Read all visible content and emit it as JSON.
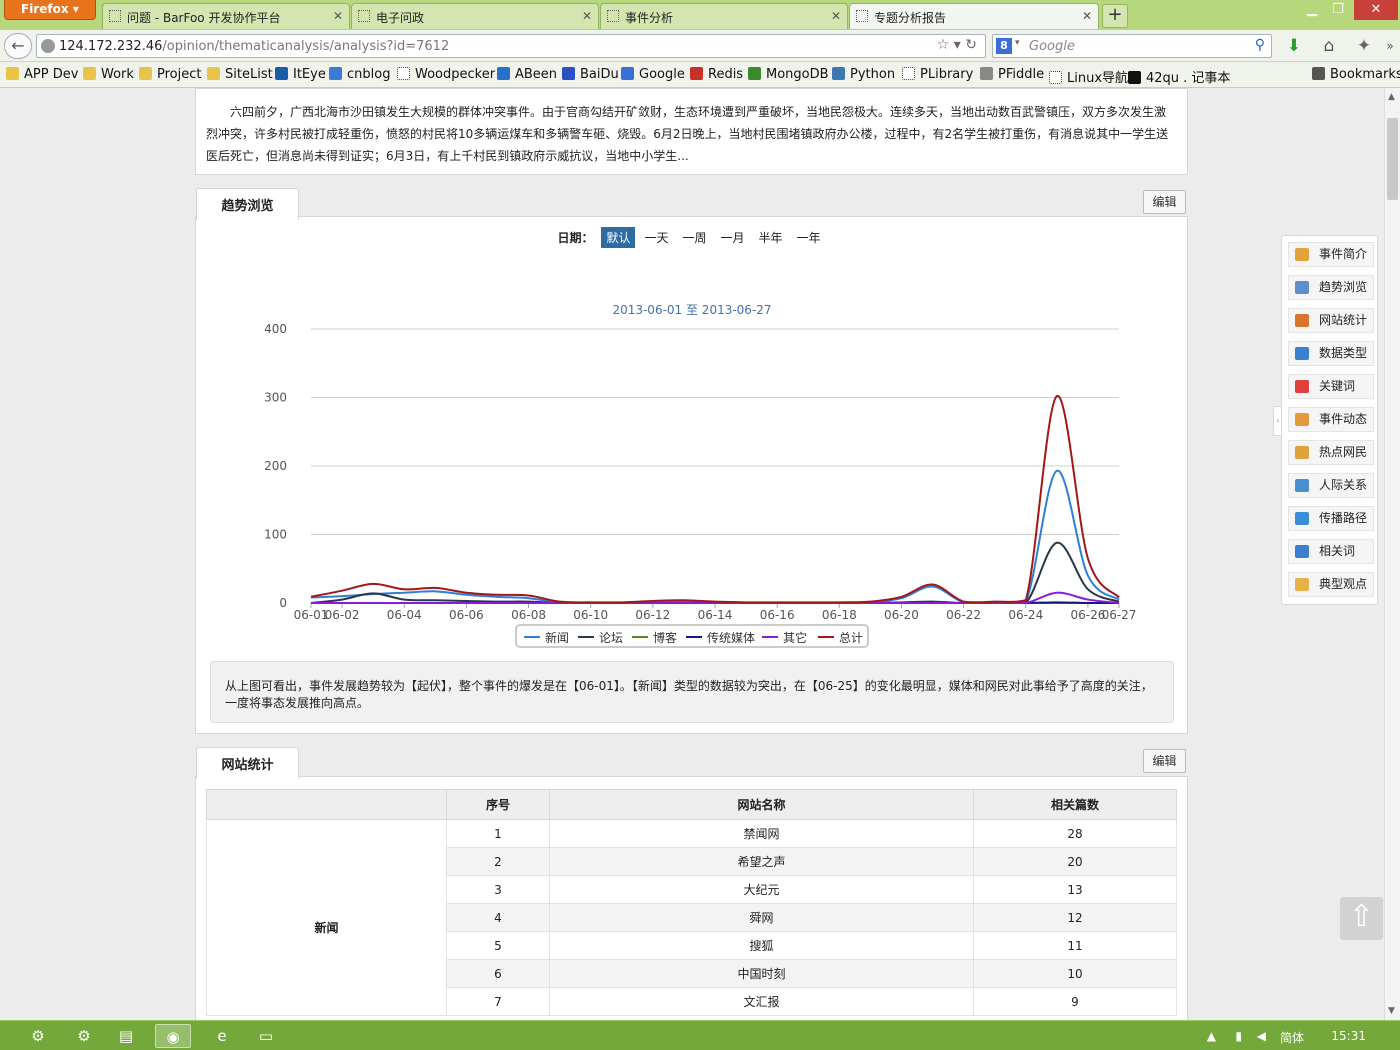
{
  "browser": {
    "menu_label": "Firefox",
    "tabs": [
      {
        "label": "问题 - BarFoo 开发协作平台"
      },
      {
        "label": "电子问政"
      },
      {
        "label": "事件分析"
      },
      {
        "label": "专题分析报告"
      }
    ],
    "new_tab": "+",
    "url_host": "124.172.232.46",
    "url_path": "/opinion/thematicanalysis/analysis?id=7612",
    "search_engine": "8",
    "search_placeholder": "Google",
    "bookmarks": [
      {
        "label": "APP Dev",
        "icon": "folder-icon",
        "color": "#e8c44a"
      },
      {
        "label": "Work",
        "icon": "folder-icon",
        "color": "#e8c44a"
      },
      {
        "label": "Project",
        "icon": "folder-icon",
        "color": "#e8c44a"
      },
      {
        "label": "SiteList",
        "icon": "folder-icon",
        "color": "#e8c44a"
      },
      {
        "label": "ItEye",
        "icon": "iteye-icon",
        "color": "#1a5ca6"
      },
      {
        "label": "cnblog",
        "icon": "cnblog-icon",
        "color": "#3a7bd5"
      },
      {
        "label": "Woodpecker",
        "icon": "page-icon",
        "color": "#ffffff"
      },
      {
        "label": "ABeen",
        "icon": "abeen-icon",
        "color": "#2b6fc8"
      },
      {
        "label": "BaiDu",
        "icon": "baidu-icon",
        "color": "#2a4fc7"
      },
      {
        "label": "Google",
        "icon": "google-icon",
        "color": "#3b6fd8"
      },
      {
        "label": "Redis",
        "icon": "redis-icon",
        "color": "#c8302a"
      },
      {
        "label": "MongoDB",
        "icon": "mongodb-icon",
        "color": "#3c8a2e"
      },
      {
        "label": "Python",
        "icon": "python-icon",
        "color": "#3f77b5"
      },
      {
        "label": "PLibrary",
        "icon": "page-icon",
        "color": "#ffffff"
      },
      {
        "label": "PFiddle",
        "icon": "pfiddle-icon",
        "color": "#888888"
      },
      {
        "label": "Linux导航",
        "icon": "page-icon",
        "color": "#ffffff"
      },
      {
        "label": "42qu . 记事本",
        "icon": "42qu-icon",
        "color": "#111111"
      }
    ],
    "bookmarks_menu": "Bookmarks"
  },
  "summary": {
    "text": "六四前夕，广西北海市沙田镇发生大规模的群体冲突事件。由于官商勾结开矿敛财，生态环境遭到严重破坏，当地民怨极大。连续多天，当地出动数百武警镇压，双方多次发生激烈冲突，许多村民被打成轻重伤，愤怒的村民将10多辆运煤车和多辆警车砸、烧毁。6月2日晚上，当地村民围堵镇政府办公楼，过程中，有2名学生被打重伤，有消息说其中一学生送医后死亡，但消息尚未得到证实；6月3日，有上千村民到镇政府示威抗议，当地中小学生..."
  },
  "trend": {
    "tab_label": "趋势浏览",
    "edit_label": "编辑",
    "date_label": "日期：",
    "date_options": [
      "默认",
      "一天",
      "一周",
      "一月",
      "半年",
      "一年"
    ],
    "selected_option": "默认",
    "conclusion": "从上图可看出，事件发展趋势较为【起伏】，整个事件的爆发是在【06-01】。【新闻】类型的数据较为突出，在【06-25】的变化最明显，媒体和网民对此事给予了高度的关注，一度将事态发展推向高点。"
  },
  "chart_data": {
    "type": "line",
    "title": "2013-06-01 至 2013-06-27",
    "x": [
      "06-01",
      "06-02",
      "06-03",
      "06-04",
      "06-05",
      "06-06",
      "06-07",
      "06-08",
      "06-09",
      "06-10",
      "06-11",
      "06-12",
      "06-13",
      "06-14",
      "06-15",
      "06-16",
      "06-17",
      "06-18",
      "06-19",
      "06-20",
      "06-21",
      "06-22",
      "06-23",
      "06-24",
      "06-25",
      "06-26",
      "06-27"
    ],
    "x_tick_labels": [
      "06-01",
      "06-02",
      "06-04",
      "06-06",
      "06-08",
      "06-10",
      "06-12",
      "06-14",
      "06-16",
      "06-18",
      "06-20",
      "06-22",
      "06-24",
      "06-26",
      "06-27"
    ],
    "ylim": [
      0,
      400
    ],
    "yticks": [
      0,
      100,
      200,
      300,
      400
    ],
    "grid": true,
    "legend_position": "bottom",
    "series": [
      {
        "name": "新闻",
        "color": "#2f7ed8",
        "values": [
          8,
          10,
          13,
          15,
          17,
          12,
          9,
          7,
          1,
          0,
          0,
          2,
          2,
          1,
          0,
          0,
          0,
          0,
          1,
          7,
          24,
          1,
          1,
          2,
          193,
          40,
          5
        ]
      },
      {
        "name": "论坛",
        "color": "#283848",
        "values": [
          0,
          5,
          14,
          5,
          4,
          3,
          2,
          2,
          0,
          0,
          0,
          0,
          0,
          0,
          0,
          0,
          0,
          0,
          0,
          1,
          2,
          0,
          0,
          0,
          88,
          20,
          2
        ]
      },
      {
        "name": "博客",
        "color": "#5a8a1f",
        "values": [
          0,
          0,
          0,
          0,
          0,
          0,
          0,
          0,
          0,
          0,
          0,
          0,
          0,
          0,
          0,
          0,
          0,
          0,
          0,
          0,
          0,
          0,
          0,
          0,
          0,
          0,
          0
        ]
      },
      {
        "name": "传统媒体",
        "color": "#101a88",
        "values": [
          0,
          0,
          0,
          0,
          0,
          0,
          0,
          0,
          0,
          0,
          0,
          0,
          0,
          0,
          0,
          0,
          0,
          0,
          0,
          0,
          0,
          0,
          0,
          0,
          1,
          0,
          0
        ]
      },
      {
        "name": "其它",
        "color": "#8a1ad8",
        "values": [
          0,
          0,
          0,
          0,
          0,
          0,
          0,
          0,
          0,
          0,
          0,
          0,
          0,
          0,
          0,
          0,
          0,
          0,
          0,
          0,
          0,
          0,
          0,
          0,
          15,
          5,
          0
        ]
      },
      {
        "name": "总计",
        "color": "#a01818",
        "values": [
          9,
          18,
          28,
          20,
          22,
          15,
          12,
          11,
          2,
          1,
          1,
          3,
          4,
          2,
          1,
          1,
          1,
          1,
          2,
          9,
          27,
          2,
          2,
          4,
          302,
          65,
          8
        ]
      }
    ]
  },
  "sites": {
    "tab_label": "网站统计",
    "edit_label": "编辑",
    "headers": [
      "",
      "序号",
      "网站名称",
      "相关篇数"
    ],
    "category": "新闻",
    "rows": [
      {
        "no": "1",
        "name": "禁闻网",
        "count": "28"
      },
      {
        "no": "2",
        "name": "希望之声",
        "count": "20"
      },
      {
        "no": "3",
        "name": "大纪元",
        "count": "13"
      },
      {
        "no": "4",
        "name": "舜网",
        "count": "12"
      },
      {
        "no": "5",
        "name": "搜狐",
        "count": "11"
      },
      {
        "no": "6",
        "name": "中国时刻",
        "count": "10"
      },
      {
        "no": "7",
        "name": "文汇报",
        "count": "9"
      }
    ]
  },
  "sidenav": {
    "items": [
      {
        "label": "事件简介",
        "icon": "book-icon",
        "color": "#e3a23a"
      },
      {
        "label": "趋势浏览",
        "icon": "trend-icon",
        "color": "#5b8fd1"
      },
      {
        "label": "网站统计",
        "icon": "bar-chart-icon",
        "color": "#d9752c"
      },
      {
        "label": "数据类型",
        "icon": "database-icon",
        "color": "#3b7fd0"
      },
      {
        "label": "关键词",
        "icon": "keyword-icon",
        "color": "#e0413c"
      },
      {
        "label": "事件动态",
        "icon": "timeline-icon",
        "color": "#e39a3b"
      },
      {
        "label": "热点网民",
        "icon": "user-icon",
        "color": "#e0a23a"
      },
      {
        "label": "人际关系",
        "icon": "network-icon",
        "color": "#4a90d0"
      },
      {
        "label": "传播路径",
        "icon": "globe-icon",
        "color": "#3a8fd8"
      },
      {
        "label": "相关词",
        "icon": "signal-icon",
        "color": "#3b7fd0"
      },
      {
        "label": "典型观点",
        "icon": "thumbs-up-icon",
        "color": "#e7b24a"
      }
    ]
  },
  "taskbar": {
    "lang": "简体",
    "time": "15:31"
  }
}
